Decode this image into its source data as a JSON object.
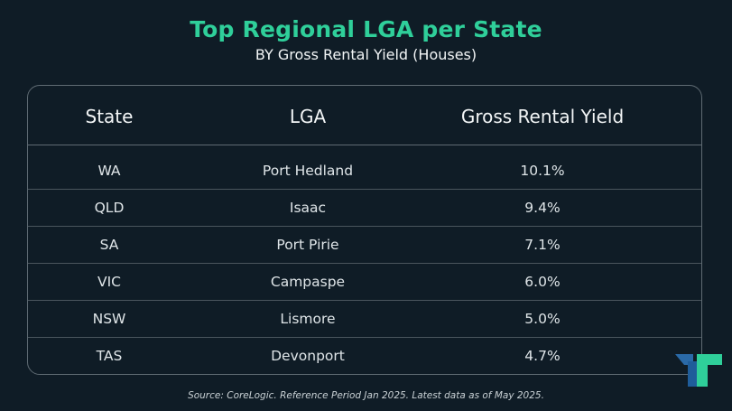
{
  "title": "Top Regional LGA per State",
  "subtitle": "BY Gross Rental Yield (Houses)",
  "table": {
    "headers": {
      "state": "State",
      "lga": "LGA",
      "yield": "Gross Rental Yield"
    },
    "rows": [
      {
        "state": "WA",
        "lga": "Port Hedland",
        "yield": "10.1%"
      },
      {
        "state": "QLD",
        "lga": "Isaac",
        "yield": "9.4%"
      },
      {
        "state": "SA",
        "lga": "Port Pirie",
        "yield": "7.1%"
      },
      {
        "state": "VIC",
        "lga": "Campaspe",
        "yield": "6.0%"
      },
      {
        "state": "NSW",
        "lga": "Lismore",
        "yield": "5.0%"
      },
      {
        "state": "TAS",
        "lga": "Devonport",
        "yield": "4.7%"
      }
    ]
  },
  "source": "Source: CoreLogic. Reference Period Jan 2025. Latest data as of May 2025.",
  "colors": {
    "accent": "#2fcf9a",
    "background": "#0f1c26",
    "logo_teal": "#2fcf9a",
    "logo_blue": "#2a6aa8"
  },
  "logo_icon": "brand-logo-icon"
}
